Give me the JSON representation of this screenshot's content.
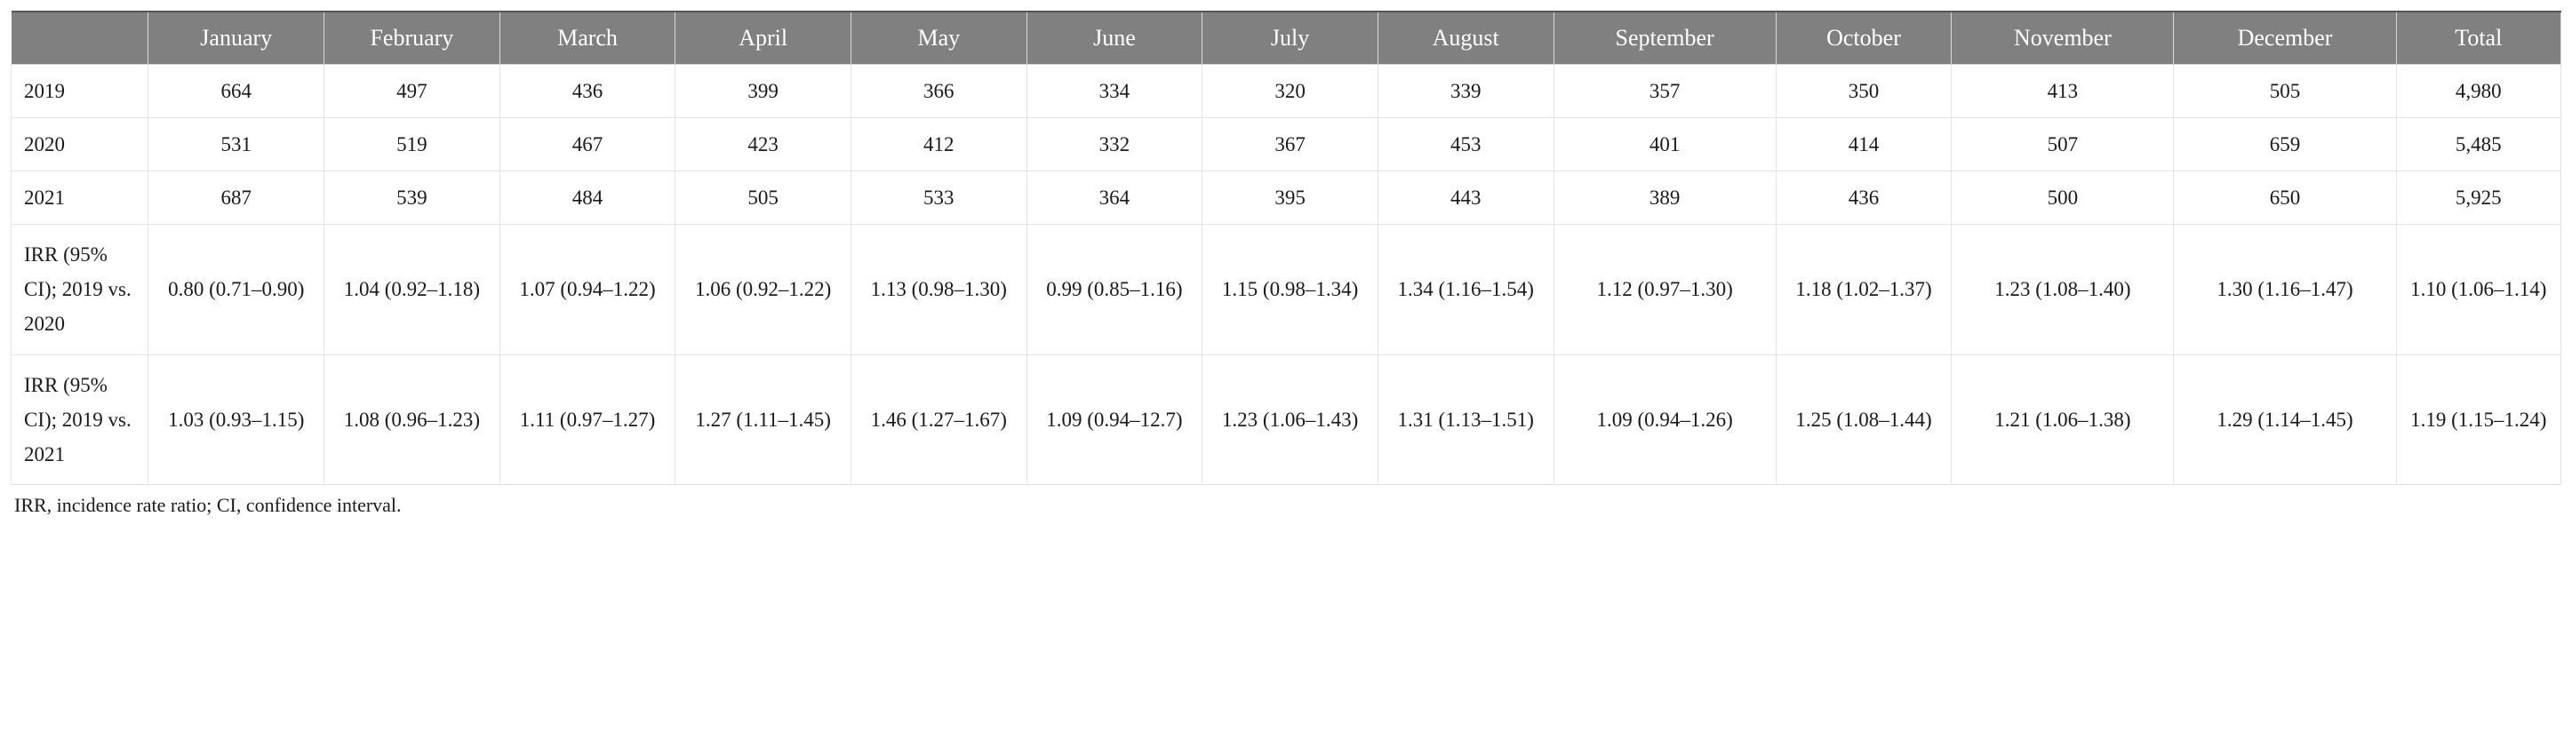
{
  "table": {
    "type": "table",
    "background_color": "#ffffff",
    "header_bg": "#808080",
    "header_fg": "#ffffff",
    "border_color": "#e3e3e3",
    "header_fontsize": 26,
    "cell_fontsize": 23,
    "footnote_fontsize": 22,
    "columns": [
      "",
      "January",
      "February",
      "March",
      "April",
      "May",
      "June",
      "July",
      "August",
      "September",
      "October",
      "November",
      "December",
      "Total"
    ],
    "rows": [
      {
        "head": "2019",
        "cells": [
          "664",
          "497",
          "436",
          "399",
          "366",
          "334",
          "320",
          "339",
          "357",
          "350",
          "413",
          "505",
          "4,980"
        ]
      },
      {
        "head": "2020",
        "cells": [
          "531",
          "519",
          "467",
          "423",
          "412",
          "332",
          "367",
          "453",
          "401",
          "414",
          "507",
          "659",
          "5,485"
        ]
      },
      {
        "head": "2021",
        "cells": [
          "687",
          "539",
          "484",
          "505",
          "533",
          "364",
          "395",
          "443",
          "389",
          "436",
          "500",
          "650",
          "5,925"
        ]
      },
      {
        "head": "IRR (95% CI); 2019 vs. 2020",
        "cells": [
          "0.80 (0.71–0.90)",
          "1.04 (0.92–1.18)",
          "1.07 (0.94–1.22)",
          "1.06 (0.92–1.22)",
          "1.13 (0.98–1.30)",
          "0.99 (0.85–1.16)",
          "1.15 (0.98–1.34)",
          "1.34 (1.16–1.54)",
          "1.12 (0.97–1.30)",
          "1.18 (1.02–1.37)",
          "1.23 (1.08–1.40)",
          "1.30 (1.16–1.47)",
          "1.10 (1.06–1.14)"
        ]
      },
      {
        "head": "IRR (95% CI); 2019 vs. 2021",
        "cells": [
          "1.03 (0.93–1.15)",
          "1.08 (0.96–1.23)",
          "1.11 (0.97–1.27)",
          "1.27 (1.11–1.45)",
          "1.46 (1.27–1.67)",
          "1.09 (0.94–12.7)",
          "1.23 (1.06–1.43)",
          "1.31 (1.13–1.51)",
          "1.09 (0.94–1.26)",
          "1.25 (1.08–1.44)",
          "1.21 (1.06–1.38)",
          "1.29 (1.14–1.45)",
          "1.19 (1.15–1.24)"
        ]
      }
    ],
    "footnote": "IRR, incidence rate ratio; CI, confidence interval."
  }
}
